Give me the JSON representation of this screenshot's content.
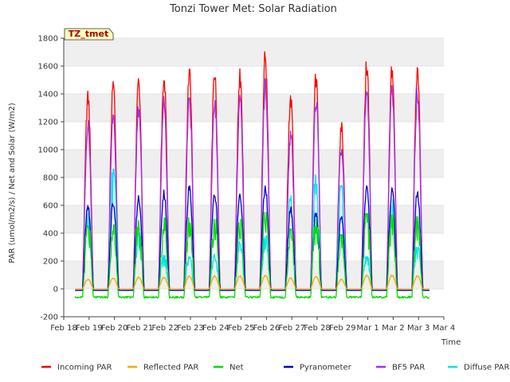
{
  "chart_data": {
    "type": "line",
    "title": "Tonzi Tower Met: Solar Radiation",
    "xlabel": "Time",
    "ylabel": "PAR (umol/m2/s) / Net and Solar (W/m2)",
    "ylim": [
      -200,
      1800
    ],
    "yticks": [
      -200,
      0,
      200,
      400,
      600,
      800,
      1000,
      1200,
      1400,
      1600,
      1800
    ],
    "xlim": [
      0,
      15
    ],
    "xtick_labels": [
      "Feb 18",
      "Feb 19",
      "Feb 20",
      "Feb 21",
      "Feb 22",
      "Feb 23",
      "Feb 24",
      "Feb 25",
      "Feb 26",
      "Feb 27",
      "Feb 28",
      "Feb 29",
      "Mar 1",
      "Mar 2",
      "Mar 3",
      "Mar 4"
    ],
    "site_label": "TZ_tmet",
    "grid": true,
    "legend_position": "bottom",
    "series": [
      {
        "name": "Incoming PAR",
        "color": "#ff0000",
        "daily_peaks": [
          1420,
          1500,
          1510,
          1570,
          1600,
          1580,
          1580,
          1710,
          1400,
          1570,
          1210,
          1660,
          1630,
          1610
        ],
        "night_value": -10
      },
      {
        "name": "Reflected PAR",
        "color": "#ffa500",
        "daily_peaks": [
          70,
          80,
          85,
          85,
          95,
          95,
          95,
          100,
          80,
          90,
          70,
          100,
          100,
          95
        ],
        "night_value": 0
      },
      {
        "name": "Net",
        "color": "#00dd00",
        "daily_peaks": [
          450,
          460,
          490,
          510,
          510,
          500,
          500,
          550,
          430,
          500,
          390,
          540,
          530,
          520
        ],
        "night_value": -60
      },
      {
        "name": "Pyranometer",
        "color": "#0000cc",
        "daily_peaks": [
          600,
          640,
          670,
          710,
          740,
          710,
          700,
          760,
          590,
          560,
          530,
          740,
          730,
          710
        ],
        "night_value": -10
      },
      {
        "name": "BF5 PAR",
        "color": "#9b30ff",
        "daily_peaks": [
          1210,
          1280,
          1330,
          1390,
          1410,
          1390,
          1390,
          1510,
          1140,
          1390,
          1040,
          1480,
          1490,
          1450
        ],
        "night_value": -10
      },
      {
        "name": "Diffuse PAR",
        "color": "#00e5ee",
        "daily_peaks": [
          580,
          860,
          400,
          240,
          230,
          250,
          340,
          380,
          670,
          820,
          740,
          260,
          640,
          300
        ],
        "night_value": -10
      }
    ]
  }
}
